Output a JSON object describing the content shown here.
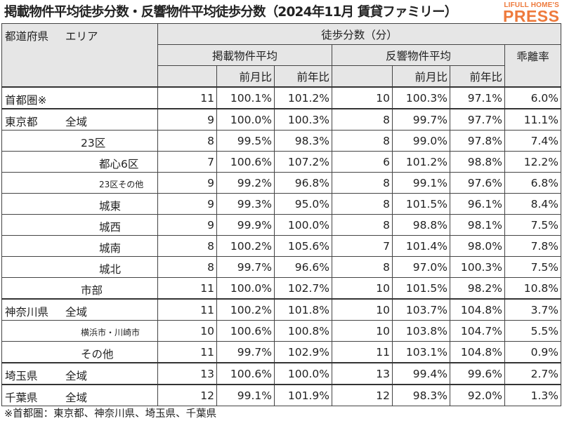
{
  "title": "掲載物件平均徒歩分数・反響物件平均徒歩分数（2024年11月 賃貸ファミリー）",
  "logo": {
    "top": "LIFULL HOME'S",
    "big": "PRESS"
  },
  "header": {
    "pref": "都道府県",
    "area": "エリア",
    "walk": "徒歩分数（分）",
    "listed": "掲載物件平均",
    "response": "反響物件平均",
    "divergence": "乖離率",
    "mom": "前月比",
    "yoy": "前年比"
  },
  "rows": [
    {
      "pref": "首都圏※",
      "area": "",
      "l": "11",
      "lm": "100.1%",
      "ly": "101.2%",
      "r": "10",
      "rm": "100.3%",
      "ry": "97.1%",
      "d": "6.0%"
    },
    {
      "pref": "東京都",
      "area": "全域",
      "l": "9",
      "lm": "100.0%",
      "ly": "100.3%",
      "r": "8",
      "rm": "99.7%",
      "ry": "97.7%",
      "d": "11.1%"
    },
    {
      "pref": "",
      "area": "23区",
      "l": "8",
      "lm": "99.5%",
      "ly": "98.3%",
      "r": "8",
      "rm": "99.0%",
      "ry": "97.8%",
      "d": "7.4%"
    },
    {
      "pref": "",
      "area": "都心6区",
      "l": "7",
      "lm": "100.6%",
      "ly": "107.2%",
      "r": "6",
      "rm": "101.2%",
      "ry": "98.8%",
      "d": "12.2%"
    },
    {
      "pref": "",
      "area": "23区その他",
      "l": "9",
      "lm": "99.2%",
      "ly": "96.8%",
      "r": "8",
      "rm": "99.1%",
      "ry": "97.6%",
      "d": "6.8%"
    },
    {
      "pref": "",
      "area": "城東",
      "l": "9",
      "lm": "99.3%",
      "ly": "95.0%",
      "r": "8",
      "rm": "101.5%",
      "ry": "96.1%",
      "d": "8.4%"
    },
    {
      "pref": "",
      "area": "城西",
      "l": "9",
      "lm": "99.9%",
      "ly": "100.0%",
      "r": "8",
      "rm": "98.8%",
      "ry": "98.1%",
      "d": "7.5%"
    },
    {
      "pref": "",
      "area": "城南",
      "l": "8",
      "lm": "100.2%",
      "ly": "105.6%",
      "r": "7",
      "rm": "101.4%",
      "ry": "98.0%",
      "d": "7.8%"
    },
    {
      "pref": "",
      "area": "城北",
      "l": "8",
      "lm": "99.7%",
      "ly": "96.6%",
      "r": "8",
      "rm": "97.0%",
      "ry": "100.3%",
      "d": "7.5%"
    },
    {
      "pref": "",
      "area": "市部",
      "l": "11",
      "lm": "100.0%",
      "ly": "102.7%",
      "r": "10",
      "rm": "101.5%",
      "ry": "98.2%",
      "d": "10.8%"
    },
    {
      "pref": "神奈川県",
      "area": "全域",
      "l": "11",
      "lm": "100.2%",
      "ly": "101.8%",
      "r": "10",
      "rm": "103.7%",
      "ry": "104.8%",
      "d": "3.7%"
    },
    {
      "pref": "",
      "area": "横浜市・川崎市",
      "l": "10",
      "lm": "100.6%",
      "ly": "100.8%",
      "r": "10",
      "rm": "103.8%",
      "ry": "104.7%",
      "d": "5.5%"
    },
    {
      "pref": "",
      "area": "その他",
      "l": "11",
      "lm": "99.7%",
      "ly": "102.9%",
      "r": "11",
      "rm": "103.1%",
      "ry": "104.8%",
      "d": "0.9%"
    },
    {
      "pref": "埼玉県",
      "area": "全域",
      "l": "13",
      "lm": "100.6%",
      "ly": "100.0%",
      "r": "13",
      "rm": "99.4%",
      "ry": "99.6%",
      "d": "2.7%"
    },
    {
      "pref": "千葉県",
      "area": "全域",
      "l": "12",
      "lm": "99.1%",
      "ly": "101.9%",
      "r": "12",
      "rm": "98.3%",
      "ry": "92.0%",
      "d": "1.3%"
    }
  ],
  "note": "※首都圏：東京都、神奈川県、埼玉県、千葉県"
}
